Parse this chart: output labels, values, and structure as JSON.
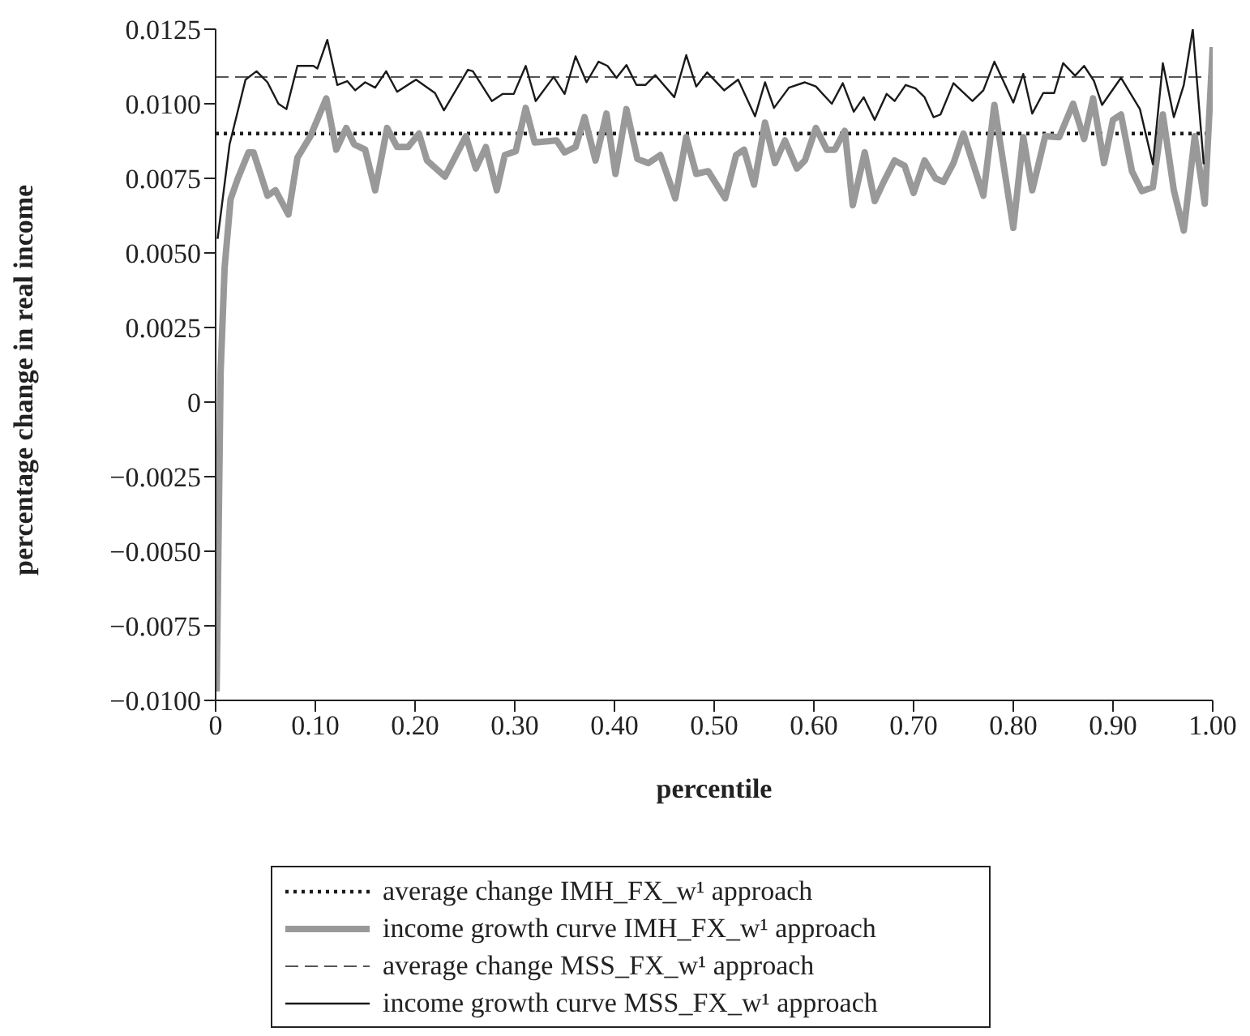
{
  "chart_data": {
    "type": "line",
    "xlabel": "percentile",
    "ylabel": "percentage change in real income",
    "xlim": [
      0,
      1
    ],
    "xticks": [
      0,
      {
        "value": 0.1,
        "label": "0.10"
      },
      {
        "value": 0.2,
        "label": "0.20"
      },
      {
        "value": 0.3,
        "label": "0.30"
      },
      {
        "value": 0.4,
        "label": "0.40"
      },
      {
        "value": 0.5,
        "label": "0.50"
      },
      {
        "value": 0.6,
        "label": "0.60"
      },
      {
        "value": 0.7,
        "label": "0.70"
      },
      {
        "value": 0.8,
        "label": "0.80"
      },
      {
        "value": 0.9,
        "label": "0.90"
      },
      {
        "value": 1,
        "label": "1.00"
      }
    ],
    "ylim": [
      -0.01,
      0.0125
    ],
    "yticks": [
      {
        "value": -0.01,
        "label": "−0.0100"
      },
      {
        "value": -0.0075,
        "label": "−0.0075"
      },
      {
        "value": -0.005,
        "label": "−0.0050"
      },
      {
        "value": -0.0025,
        "label": "−0.0025"
      },
      0,
      {
        "value": 0.0025,
        "label": "0.0025"
      },
      {
        "value": 0.005,
        "label": "0.0050"
      },
      {
        "value": 0.0075,
        "label": "0.0075"
      },
      {
        "value": 0.01,
        "label": "0.0100"
      },
      {
        "value": 0.0125,
        "label": "0.0125"
      }
    ],
    "grid": false,
    "legend": "bottom",
    "marker": "none",
    "ref_lines": [
      {
        "axis": "y",
        "value": 0.009,
        "label": "average change IMH_FX_w¹ approach",
        "color": "#1a1a1a",
        "line_style": "dotted"
      },
      {
        "axis": "y",
        "value": 0.0109,
        "label": "average change MSS_FX_w¹ approach",
        "color": "#555555",
        "line_style": "dashed"
      }
    ],
    "series": [
      {
        "name": "income growth curve IMH_FX_w¹ approach",
        "color": "#999999",
        "x": [
          0.001,
          0.005,
          0.009,
          0.015,
          0.022,
          0.033,
          0.038,
          0.052,
          0.06,
          0.073,
          0.082,
          0.095,
          0.111,
          0.121,
          0.131,
          0.139,
          0.15,
          0.16,
          0.172,
          0.182,
          0.193,
          0.204,
          0.212,
          0.23,
          0.251,
          0.261,
          0.271,
          0.282,
          0.29,
          0.301,
          0.311,
          0.32,
          0.342,
          0.35,
          0.361,
          0.37,
          0.381,
          0.392,
          0.401,
          0.412,
          0.423,
          0.434,
          0.446,
          0.461,
          0.472,
          0.482,
          0.494,
          0.511,
          0.522,
          0.53,
          0.54,
          0.551,
          0.561,
          0.571,
          0.583,
          0.591,
          0.602,
          0.613,
          0.621,
          0.631,
          0.639,
          0.651,
          0.661,
          0.67,
          0.681,
          0.691,
          0.7,
          0.711,
          0.722,
          0.73,
          0.74,
          0.75,
          0.77,
          0.781,
          0.8,
          0.81,
          0.819,
          0.832,
          0.846,
          0.86,
          0.871,
          0.88,
          0.891,
          0.9,
          0.908,
          0.919,
          0.929,
          0.94,
          0.95,
          0.961,
          0.971,
          0.982,
          0.992,
          1.0
        ],
        "values": [
          -0.0097,
          0.001,
          0.0045,
          0.0068,
          0.00747,
          0.00837,
          0.00837,
          0.00692,
          0.0071,
          0.00629,
          0.00819,
          0.00891,
          0.01018,
          0.00846,
          0.00919,
          0.00864,
          0.00846,
          0.0071,
          0.00919,
          0.00855,
          0.00855,
          0.009,
          0.0081,
          0.00756,
          0.00891,
          0.00783,
          0.00855,
          0.0071,
          0.00828,
          0.00841,
          0.00986,
          0.0087,
          0.00877,
          0.00837,
          0.00855,
          0.00955,
          0.0081,
          0.00967,
          0.00765,
          0.00982,
          0.00815,
          0.00801,
          0.00828,
          0.00683,
          0.00888,
          0.00765,
          0.00774,
          0.00683,
          0.00828,
          0.00846,
          0.00729,
          0.00937,
          0.00801,
          0.00877,
          0.00783,
          0.0081,
          0.00919,
          0.00846,
          0.00846,
          0.00909,
          0.0066,
          0.00837,
          0.00674,
          0.00738,
          0.0081,
          0.00792,
          0.00701,
          0.0081,
          0.0075,
          0.00738,
          0.00801,
          0.009,
          0.00692,
          0.00996,
          0.00584,
          0.00888,
          0.0071,
          0.00891,
          0.00888,
          0.01,
          0.00882,
          0.01018,
          0.00801,
          0.00946,
          0.00964,
          0.00774,
          0.00707,
          0.0072,
          0.00964,
          0.0071,
          0.00575,
          0.00891,
          0.00665,
          0.0119
        ]
      },
      {
        "name": "income growth curve MSS_FX_w¹ approach",
        "color": "#1a1a1a",
        "x": [
          0.002,
          0.014,
          0.03,
          0.041,
          0.052,
          0.063,
          0.071,
          0.082,
          0.098,
          0.102,
          0.112,
          0.122,
          0.132,
          0.14,
          0.15,
          0.16,
          0.171,
          0.182,
          0.201,
          0.22,
          0.229,
          0.253,
          0.258,
          0.277,
          0.288,
          0.299,
          0.311,
          0.321,
          0.339,
          0.35,
          0.361,
          0.372,
          0.384,
          0.393,
          0.402,
          0.412,
          0.422,
          0.431,
          0.441,
          0.46,
          0.472,
          0.482,
          0.493,
          0.51,
          0.524,
          0.541,
          0.551,
          0.56,
          0.575,
          0.591,
          0.602,
          0.618,
          0.629,
          0.64,
          0.65,
          0.661,
          0.673,
          0.681,
          0.692,
          0.702,
          0.711,
          0.72,
          0.727,
          0.74,
          0.759,
          0.77,
          0.781,
          0.8,
          0.81,
          0.819,
          0.83,
          0.841,
          0.85,
          0.862,
          0.871,
          0.881,
          0.889,
          0.908,
          0.927,
          0.94,
          0.95,
          0.961,
          0.971,
          0.98,
          0.991
        ],
        "values": [
          0.00547,
          0.00864,
          0.01081,
          0.01109,
          0.01072,
          0.01,
          0.00982,
          0.01127,
          0.01127,
          0.01118,
          0.01214,
          0.01063,
          0.01076,
          0.01045,
          0.01072,
          0.01054,
          0.01109,
          0.0104,
          0.01081,
          0.01036,
          0.00978,
          0.01114,
          0.01109,
          0.01009,
          0.01033,
          0.01033,
          0.01127,
          0.01009,
          0.0109,
          0.01033,
          0.01159,
          0.01072,
          0.01141,
          0.01127,
          0.01087,
          0.0113,
          0.01063,
          0.01063,
          0.01096,
          0.01022,
          0.01163,
          0.01058,
          0.01105,
          0.01045,
          0.01081,
          0.00958,
          0.01072,
          0.00986,
          0.01054,
          0.01072,
          0.01058,
          0.01,
          0.01069,
          0.00973,
          0.01022,
          0.00946,
          0.01033,
          0.01009,
          0.01063,
          0.01051,
          0.01022,
          0.00955,
          0.00964,
          0.01069,
          0.01009,
          0.01045,
          0.01141,
          0.01004,
          0.011,
          0.00967,
          0.01036,
          0.01036,
          0.01136,
          0.01094,
          0.01127,
          0.01076,
          0.00996,
          0.01087,
          0.00982,
          0.00797,
          0.01136,
          0.00955,
          0.01063,
          0.0125,
          0.00797
        ]
      }
    ]
  }
}
